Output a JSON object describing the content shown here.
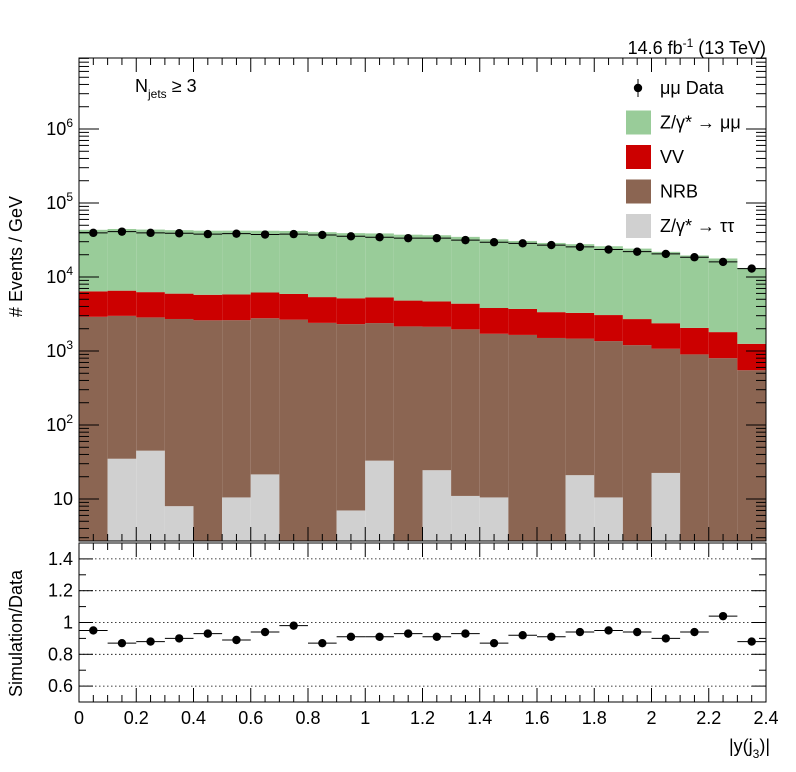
{
  "header": {
    "lumi_prefix": "14.6 fb",
    "lumi_exp": "-1",
    "lumi_suffix": " (13 TeV)"
  },
  "selection": {
    "label_main": "N",
    "label_sub": "jets",
    "label_rest": " ≥ 3"
  },
  "chart_data": [
    {
      "type": "bar",
      "stacked": true,
      "yscale": "log",
      "ylabel": "# Events / GeV",
      "xlabel_main": "|y(j",
      "xlabel_sub": "3",
      "xlabel_end": ")|",
      "xlim": [
        0,
        2.4
      ],
      "ylim": [
        3,
        800000
      ],
      "bin_edges": [
        0,
        0.1,
        0.2,
        0.3,
        0.4,
        0.5,
        0.6,
        0.7,
        0.8,
        0.9,
        1.0,
        1.1,
        1.2,
        1.3,
        1.4,
        1.5,
        1.6,
        1.7,
        1.8,
        1.9,
        2.0,
        2.1,
        2.2,
        2.3,
        2.4
      ],
      "x_ticks": [
        "0",
        "0.2",
        "0.4",
        "0.6",
        "0.8",
        "1",
        "1.2",
        "1.4",
        "1.6",
        "1.8",
        "2",
        "2.2",
        "2.4"
      ],
      "y_ticks": [
        {
          "v": 10,
          "base": "10",
          "exp": ""
        },
        {
          "v": 100,
          "base": "10",
          "exp": "2"
        },
        {
          "v": 1000,
          "base": "10",
          "exp": "3"
        },
        {
          "v": 10000,
          "base": "10",
          "exp": "4"
        },
        {
          "v": 100000,
          "base": "10",
          "exp": "5"
        },
        {
          "v": 1000000,
          "base": "10",
          "exp": "6"
        }
      ],
      "legend_position": "top-right",
      "series": [
        {
          "key": "tautau",
          "name": "Z/γ* → ττ",
          "color": "#d0d0d0",
          "values": [
            0,
            35,
            45,
            8,
            0,
            10.5,
            21.5,
            0,
            0,
            7,
            33,
            0,
            24.5,
            11,
            10.5,
            0,
            0,
            21,
            10.5,
            0,
            22.5,
            0,
            0,
            0
          ]
        },
        {
          "key": "nrb",
          "name": "NRB",
          "color": "#8b6552",
          "values": [
            2900,
            2950,
            2800,
            2700,
            2600,
            2600,
            2750,
            2650,
            2400,
            2300,
            2350,
            2150,
            2100,
            1950,
            1700,
            1650,
            1500,
            1450,
            1350,
            1200,
            1050,
            900,
            800,
            550
          ]
        },
        {
          "key": "vv",
          "name": "VV",
          "color": "#cc0000",
          "values": [
            3500,
            3550,
            3400,
            3250,
            3150,
            3200,
            3400,
            3250,
            2950,
            2850,
            2900,
            2650,
            2550,
            2400,
            2100,
            2050,
            1850,
            1800,
            1700,
            1500,
            1300,
            1150,
            1000,
            700
          ]
        },
        {
          "key": "zmumu",
          "name": "Z/γ* → μμ",
          "color": "#99cc99",
          "values": [
            37000,
            38000,
            37500,
            37000,
            36500,
            36500,
            36000,
            36000,
            35000,
            34000,
            33500,
            32500,
            32000,
            30500,
            28500,
            27000,
            25500,
            24500,
            23000,
            21500,
            19500,
            17500,
            16000,
            12000
          ]
        }
      ],
      "data": {
        "name": "μμ Data",
        "values": [
          39500,
          41000,
          39500,
          39000,
          38000,
          38500,
          37500,
          38000,
          37000,
          35500,
          34500,
          33500,
          33500,
          31500,
          29500,
          28500,
          27000,
          25500,
          23500,
          22000,
          20500,
          18500,
          16000,
          13000
        ]
      }
    },
    {
      "type": "scatter",
      "ylabel": "Simulation/Data",
      "ylim": [
        0.5,
        1.5
      ],
      "y_ticks": [
        "0.6",
        "0.8",
        "1",
        "1.2",
        "1.4"
      ],
      "gridlines": [
        0.6,
        0.8,
        1.0,
        1.2,
        1.4
      ],
      "x": [
        0.05,
        0.15,
        0.25,
        0.35,
        0.45,
        0.55,
        0.65,
        0.75,
        0.85,
        0.95,
        1.05,
        1.15,
        1.25,
        1.35,
        1.45,
        1.55,
        1.65,
        1.75,
        1.85,
        1.95,
        2.05,
        2.15,
        2.25,
        2.35
      ],
      "values": [
        0.95,
        0.87,
        0.88,
        0.9,
        0.93,
        0.89,
        0.94,
        0.98,
        0.87,
        0.91,
        0.91,
        0.93,
        0.91,
        0.93,
        0.87,
        0.92,
        0.91,
        0.94,
        0.95,
        0.94,
        0.9,
        0.94,
        1.04,
        0.88
      ]
    }
  ]
}
